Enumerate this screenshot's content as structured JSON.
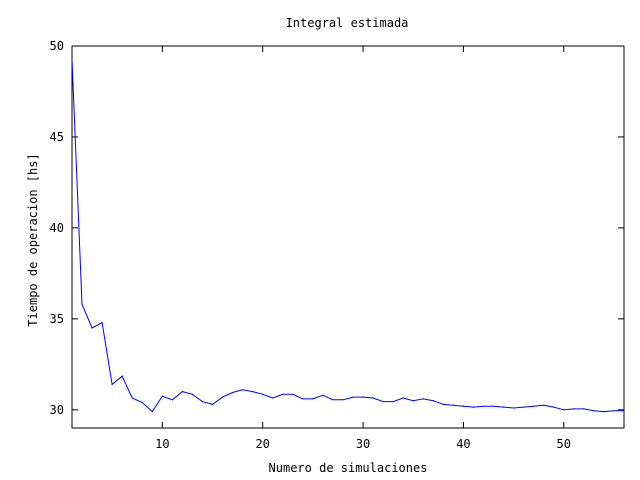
{
  "chart_data": {
    "type": "line",
    "title": "Integral estimada",
    "xlabel": "Numero de simulaciones",
    "ylabel": "Tiempo de operacion [hs]",
    "xlim": [
      1,
      56
    ],
    "ylim": [
      29,
      50
    ],
    "xticks": [
      10,
      20,
      30,
      40,
      50
    ],
    "xtick_labels": [
      "10",
      "20",
      "30",
      "40",
      "50"
    ],
    "yticks": [
      30,
      35,
      40,
      45,
      50
    ],
    "ytick_labels": [
      "30",
      "35",
      "40",
      "45",
      "50"
    ],
    "grid": false,
    "legend": "none",
    "series": [
      {
        "color": "#0000ff",
        "x": [
          1,
          2,
          3,
          4,
          5,
          6,
          7,
          8,
          9,
          10,
          11,
          12,
          13,
          14,
          15,
          16,
          17,
          18,
          19,
          20,
          21,
          22,
          23,
          24,
          25,
          26,
          27,
          28,
          29,
          30,
          31,
          32,
          33,
          34,
          35,
          36,
          37,
          38,
          39,
          40,
          41,
          42,
          43,
          44,
          45,
          46,
          47,
          48,
          49,
          50,
          51,
          52,
          53,
          54,
          55,
          56
        ],
        "y": [
          49.3,
          35.8,
          34.5,
          34.8,
          31.4,
          31.85,
          30.65,
          30.4,
          29.9,
          30.75,
          30.55,
          31.0,
          30.85,
          30.45,
          30.3,
          30.7,
          30.95,
          31.1,
          31.0,
          30.85,
          30.65,
          30.85,
          30.85,
          30.6,
          30.6,
          30.8,
          30.55,
          30.55,
          30.7,
          30.7,
          30.65,
          30.45,
          30.45,
          30.65,
          30.5,
          30.6,
          30.5,
          30.3,
          30.25,
          30.2,
          30.15,
          30.2,
          30.2,
          30.15,
          30.1,
          30.15,
          30.2,
          30.25,
          30.15,
          30.0,
          30.05,
          30.05,
          29.95,
          29.9,
          29.95,
          29.95
        ]
      }
    ]
  }
}
